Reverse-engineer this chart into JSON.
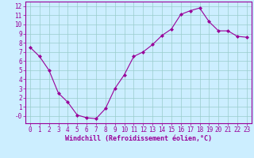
{
  "x": [
    0,
    1,
    2,
    3,
    4,
    5,
    6,
    7,
    8,
    9,
    10,
    11,
    12,
    13,
    14,
    15,
    16,
    17,
    18,
    19,
    20,
    21,
    22,
    23
  ],
  "y": [
    7.5,
    6.5,
    5.0,
    2.5,
    1.5,
    0.1,
    -0.2,
    -0.3,
    0.8,
    3.0,
    4.5,
    6.5,
    7.0,
    7.8,
    8.8,
    9.5,
    11.1,
    11.5,
    11.8,
    10.3,
    9.3,
    9.3,
    8.7,
    8.6
  ],
  "line_color": "#990099",
  "marker": "D",
  "marker_size": 2.0,
  "bg_color": "#cceeff",
  "grid_color": "#99cccc",
  "xlabel": "Windchill (Refroidissement éolien,°C)",
  "ylabel_ticks": [
    0,
    1,
    2,
    3,
    4,
    5,
    6,
    7,
    8,
    9,
    10,
    11,
    12
  ],
  "ytick_labels": [
    "-0",
    "1",
    "2",
    "3",
    "4",
    "5",
    "6",
    "7",
    "8",
    "9",
    "10",
    "11",
    "12"
  ],
  "xlim": [
    -0.5,
    23.5
  ],
  "ylim": [
    -0.8,
    12.5
  ],
  "xtick_labels": [
    "0",
    "1",
    "2",
    "3",
    "4",
    "5",
    "6",
    "7",
    "8",
    "9",
    "10",
    "11",
    "12",
    "13",
    "14",
    "15",
    "16",
    "17",
    "18",
    "19",
    "20",
    "21",
    "22",
    "23"
  ],
  "tick_color": "#990099",
  "label_color": "#990099",
  "spine_color": "#990099",
  "tick_fontsize": 5.5,
  "xlabel_fontsize": 6.0
}
